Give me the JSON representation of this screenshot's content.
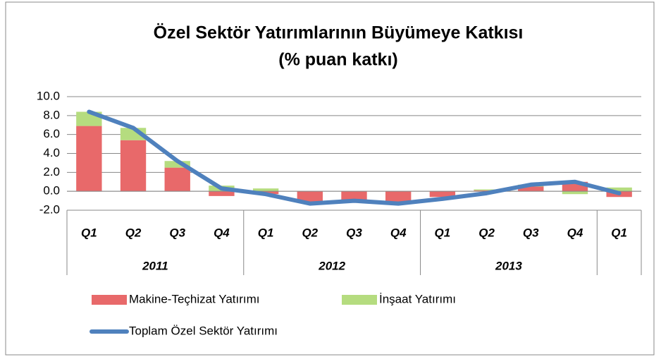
{
  "chart_data": {
    "type": "bar",
    "stacked": true,
    "title": "Özel Sektör Yatırımlarının Büyümeye Katkısı",
    "subtitle": "(% puan katkı)",
    "category_groups": [
      {
        "label": "2011",
        "categories": [
          "Q1",
          "Q2",
          "Q3",
          "Q4"
        ]
      },
      {
        "label": "2012",
        "categories": [
          "Q1",
          "Q2",
          "Q3",
          "Q4"
        ]
      },
      {
        "label": "2013",
        "categories": [
          "Q1",
          "Q2",
          "Q3",
          "Q4"
        ]
      },
      {
        "label": null,
        "categories": [
          "Q1"
        ]
      }
    ],
    "series": [
      {
        "name": "Makine-Teçhizat Yatırımı",
        "type": "bar",
        "color": "#e8696a",
        "values": [
          6.9,
          5.4,
          2.5,
          -0.5,
          -0.3,
          -1.2,
          -1.1,
          -1.2,
          -0.6,
          0.1,
          0.5,
          1.0,
          -0.6
        ]
      },
      {
        "name": "İnşaat Yatırımı",
        "type": "bar",
        "color": "#b5dc7f",
        "values": [
          1.5,
          1.3,
          0.7,
          0.6,
          0.3,
          0,
          0,
          0,
          0,
          0.1,
          0.2,
          -0.3,
          0.4
        ]
      },
      {
        "name": "Toplam Özel Sektör Yatırımı",
        "type": "line",
        "color": "#4f81bd",
        "values": [
          8.4,
          6.7,
          3.2,
          0.3,
          -0.3,
          -1.3,
          -1.0,
          -1.3,
          -0.8,
          -0.2,
          0.7,
          1.0,
          -0.2
        ]
      }
    ],
    "ylim": [
      -2,
      10
    ],
    "yticks": [
      {
        "value": -2,
        "label": "-2.0"
      },
      {
        "value": 0,
        "label": "0.0"
      },
      {
        "value": 2,
        "label": "2.0"
      },
      {
        "value": 4,
        "label": "4.0"
      },
      {
        "value": 6,
        "label": "6.0"
      },
      {
        "value": 8,
        "label": "8.0"
      },
      {
        "value": 10,
        "label": "10.0"
      }
    ],
    "grid": true
  }
}
